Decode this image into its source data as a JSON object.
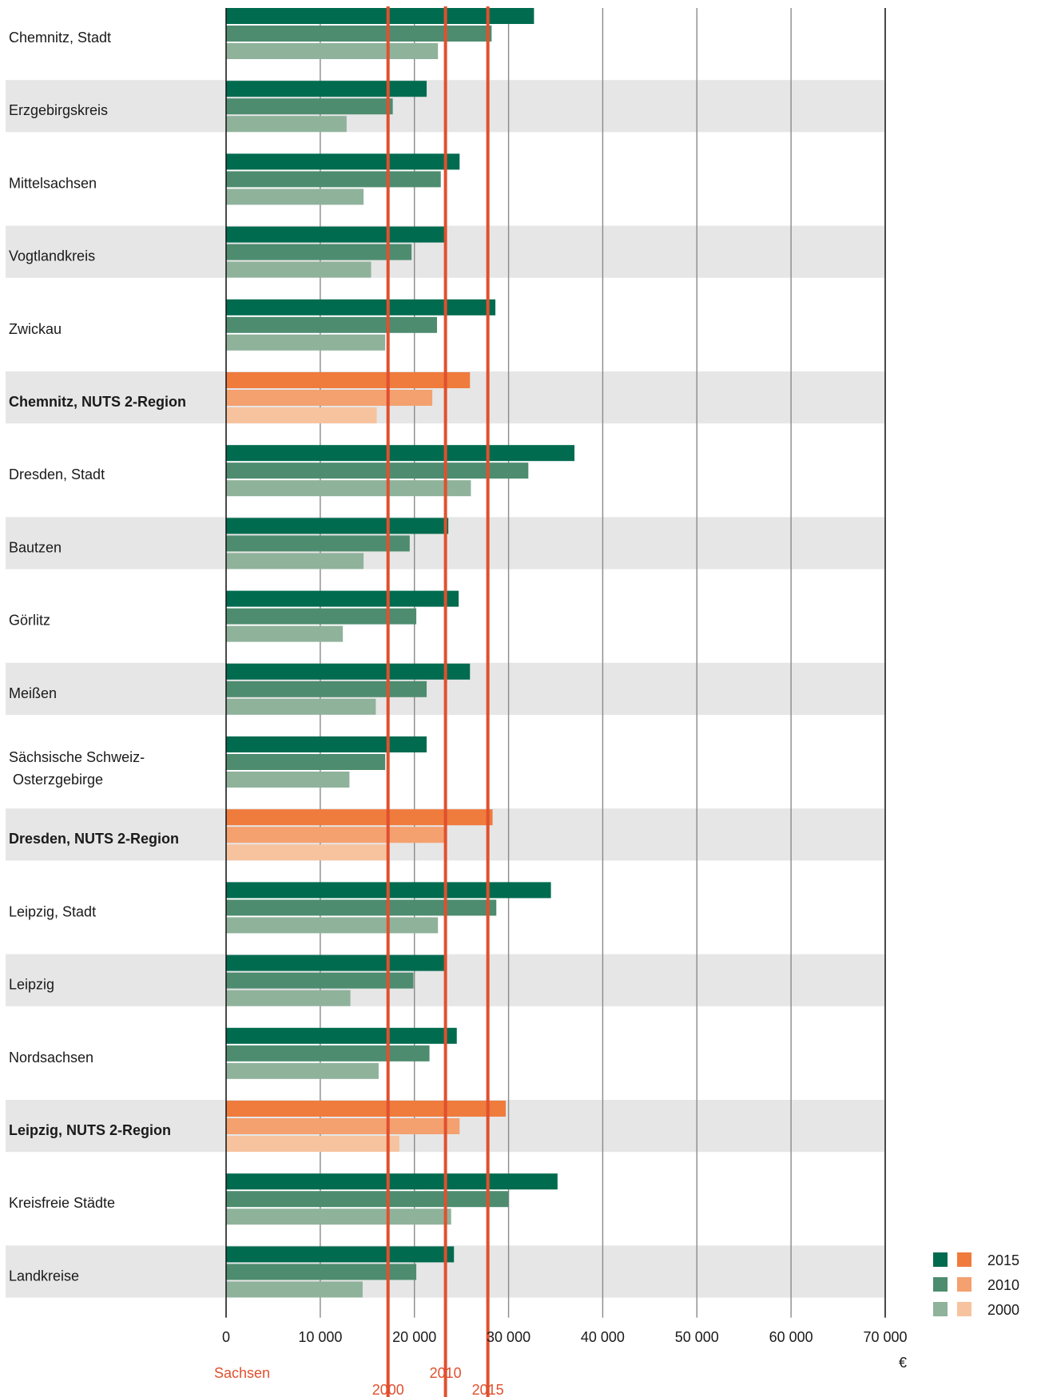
{
  "chart_data": {
    "type": "bar",
    "orientation": "horizontal",
    "unit": "€",
    "xlim": [
      0,
      70000
    ],
    "ticks": [
      0,
      10000,
      20000,
      30000,
      40000,
      50000,
      60000,
      70000
    ],
    "tick_labels": [
      "0",
      "10 000",
      "20 000",
      "30 000",
      "40 000",
      "50 000",
      "60 000",
      "70 000"
    ],
    "legend_position": "bottom-right",
    "categories": [
      {
        "label": [
          "Chemnitz, Stadt"
        ],
        "nuts2": false,
        "values": {
          "2015": 32700,
          "2010": 28200,
          "2000": 22500
        }
      },
      {
        "label": [
          "Erzgebirgskreis"
        ],
        "nuts2": false,
        "values": {
          "2015": 21300,
          "2010": 17700,
          "2000": 12800
        }
      },
      {
        "label": [
          "Mittelsachsen"
        ],
        "nuts2": false,
        "values": {
          "2015": 24800,
          "2010": 22800,
          "2000": 14600
        }
      },
      {
        "label": [
          "Vogtlandkreis"
        ],
        "nuts2": false,
        "values": {
          "2015": 23200,
          "2010": 19700,
          "2000": 15400
        }
      },
      {
        "label": [
          "Zwickau"
        ],
        "nuts2": false,
        "values": {
          "2015": 28600,
          "2010": 22400,
          "2000": 16900
        }
      },
      {
        "label": [
          "Chemnitz, NUTS 2-Region"
        ],
        "nuts2": true,
        "values": {
          "2015": 25900,
          "2010": 21900,
          "2000": 16000
        }
      },
      {
        "label": [
          "Dresden, Stadt"
        ],
        "nuts2": false,
        "values": {
          "2015": 37000,
          "2010": 32100,
          "2000": 26000
        }
      },
      {
        "label": [
          "Bautzen"
        ],
        "nuts2": false,
        "values": {
          "2015": 23600,
          "2010": 19500,
          "2000": 14600
        }
      },
      {
        "label": [
          "Görlitz"
        ],
        "nuts2": false,
        "values": {
          "2015": 24700,
          "2010": 20200,
          "2000": 12400
        }
      },
      {
        "label": [
          "Meißen"
        ],
        "nuts2": false,
        "values": {
          "2015": 25900,
          "2010": 21300,
          "2000": 15900
        }
      },
      {
        "label": [
          "Sächsische Schweiz-",
          "  Osterzgebirge"
        ],
        "nuts2": false,
        "values": {
          "2015": 21300,
          "2010": 16900,
          "2000": 13100
        }
      },
      {
        "label": [
          "Dresden, NUTS 2-Region"
        ],
        "nuts2": true,
        "values": {
          "2015": 28300,
          "2010": 23400,
          "2000": 17200
        }
      },
      {
        "label": [
          "Leipzig, Stadt"
        ],
        "nuts2": false,
        "values": {
          "2015": 34500,
          "2010": 28700,
          "2000": 22500
        }
      },
      {
        "label": [
          "Leipzig"
        ],
        "nuts2": false,
        "values": {
          "2015": 23200,
          "2010": 19900,
          "2000": 13200
        }
      },
      {
        "label": [
          "Nordsachsen"
        ],
        "nuts2": false,
        "values": {
          "2015": 24500,
          "2010": 21600,
          "2000": 16200
        }
      },
      {
        "label": [
          "Leipzig, NUTS 2-Region"
        ],
        "nuts2": true,
        "values": {
          "2015": 29700,
          "2010": 24800,
          "2000": 18400
        }
      },
      {
        "label": [
          "Kreisfreie Städte"
        ],
        "nuts2": false,
        "values": {
          "2015": 35200,
          "2010": 30000,
          "2000": 23900
        }
      },
      {
        "label": [
          "Landkreise"
        ],
        "nuts2": false,
        "values": {
          "2015": 24200,
          "2010": 20200,
          "2000": 14500
        }
      }
    ],
    "series": [
      {
        "name": "2015",
        "color_kreis": "#006b4f",
        "color_nuts2": "#ef7b3d"
      },
      {
        "name": "2010",
        "color_kreis": "#4d8c6f",
        "color_nuts2": "#f4a06f"
      },
      {
        "name": "2000",
        "color_kreis": "#8fb29b",
        "color_nuts2": "#f7c39f"
      }
    ],
    "reference_lines": {
      "group_label": "Sachsen",
      "color": "#e0502e",
      "lines": [
        {
          "name": "2000",
          "value": 17200
        },
        {
          "name": "2010",
          "value": 23300
        },
        {
          "name": "2015",
          "value": 27800
        }
      ]
    },
    "band_color": "#e6e6e6"
  }
}
